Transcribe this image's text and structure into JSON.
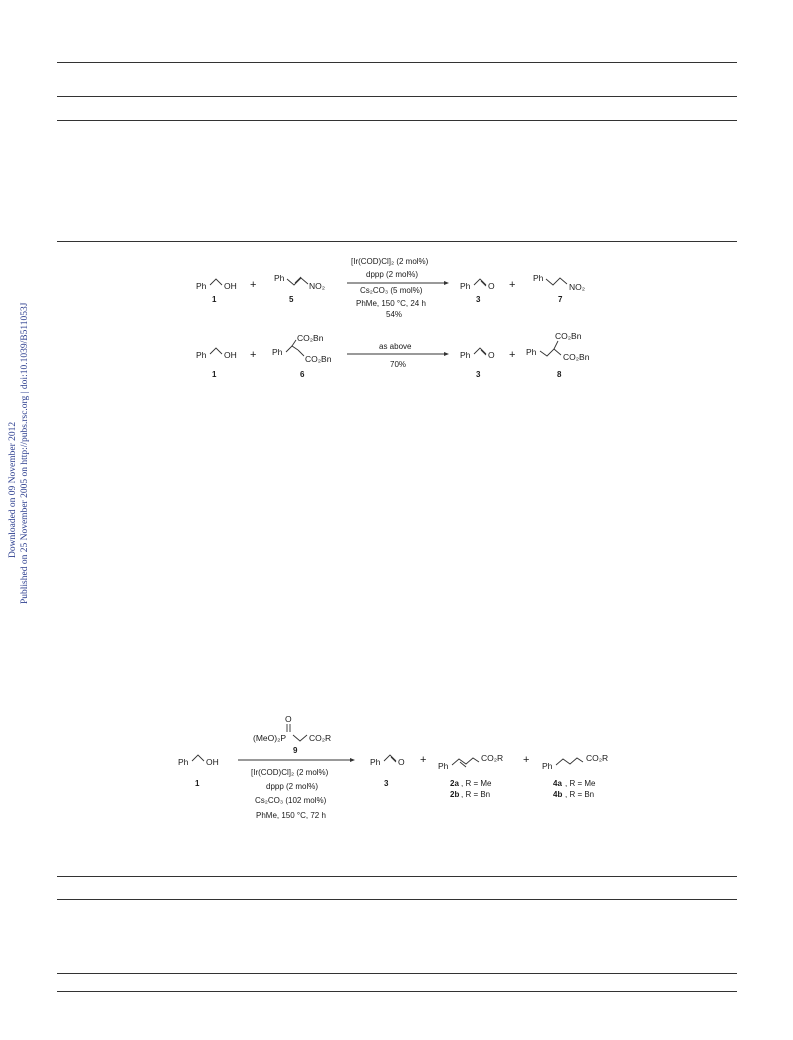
{
  "side_note": {
    "downloaded": "Downloaded on 09 November 2012",
    "published": "Published on 25 November 2005 on http://pubs.rsc.org | doi:10.1039/B511053J"
  },
  "scheme_top": {
    "row1": {
      "reactant_a": "Ph",
      "reactant_a_group": "OH",
      "reactant_a_num": "1",
      "plus": "+",
      "reactant_b": "Ph",
      "reactant_b_group": "NO₂",
      "reactant_b_num": "5",
      "catalyst": "[Ir(COD)Cl]₂ (2 mol%)",
      "ligand": "dppp (2 mol%)",
      "base": "Cs₂CO₃ (5 mol%)",
      "conditions": "PhMe, 150 °C, 24 h",
      "yield": "54%",
      "product_a": "Ph",
      "product_a_group": "O",
      "product_a_num": "3",
      "product_b": "Ph",
      "product_b_group": "NO₂",
      "product_b_num": "7"
    },
    "row2": {
      "reactant_a": "Ph",
      "reactant_a_group": "OH",
      "reactant_a_num": "1",
      "plus": "+",
      "reactant_b": "Ph",
      "reactant_b_group_top": "CO₂Bn",
      "reactant_b_group_bottom": "CO₂Bn",
      "reactant_b_num": "6",
      "conditions": "as above",
      "yield": "70%",
      "product_a": "Ph",
      "product_a_group": "O",
      "product_a_num": "3",
      "product_b": "Ph",
      "product_b_group_top": "CO₂Bn",
      "product_b_group_bottom": "CO₂Bn",
      "product_b_num": "8"
    }
  },
  "scheme_bottom": {
    "reactant": "Ph",
    "reactant_group": "OH",
    "reactant_num": "1",
    "reagent_o": "O",
    "reagent_p": "(MeO)₂P",
    "reagent_ester": "CO₂R",
    "reagent_num": "9",
    "catalyst": "[Ir(COD)Cl]₂ (2 mol%)",
    "ligand": "dppp (2 mol%)",
    "base": "Cs₂CO₃ (102 mol%)",
    "conditions": "PhMe, 150 °C, 72 h",
    "product_a": "Ph",
    "product_a_group": "O",
    "product_a_num": "3",
    "plus": "+",
    "product_b": "Ph",
    "product_b_group": "CO₂R",
    "product_b_line1_num": "2a",
    "product_b_line1_text": ", R = Me",
    "product_b_line2_num": "2b",
    "product_b_line2_text": ", R = Bn",
    "product_c": "Ph",
    "product_c_group": "CO₂R",
    "product_c_line1_num": "4a",
    "product_c_line1_text": ", R = Me",
    "product_c_line2_num": "4b",
    "product_c_line2_text": ", R = Bn"
  }
}
